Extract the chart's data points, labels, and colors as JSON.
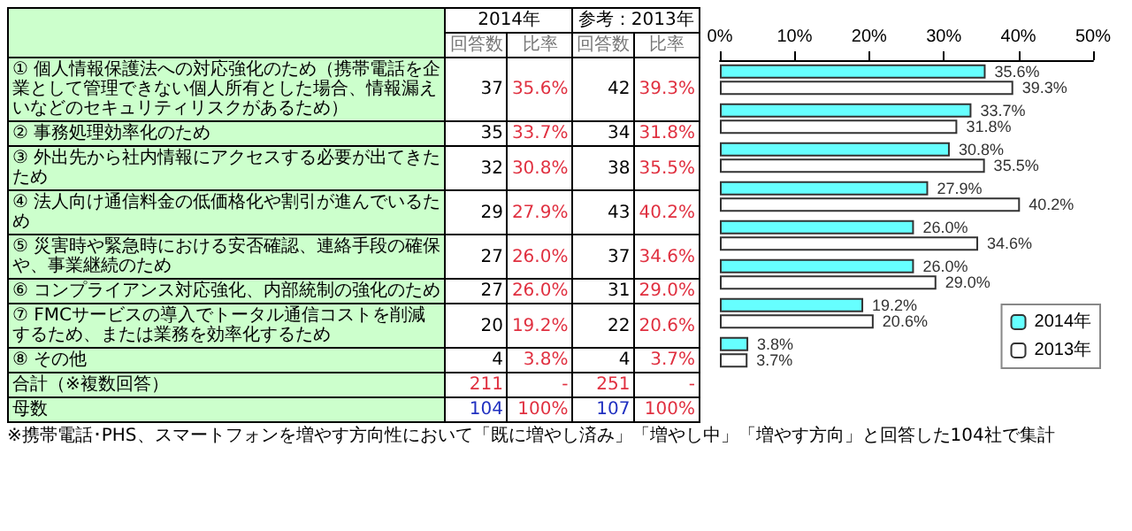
{
  "chart_data": [
    {
      "type": "other",
      "categories": [
        "回答数",
        "比率",
        "回答数",
        "比率"
      ],
      "y_categories": [
        "① 個人情報保護法への対応強化のため（携帯電話を企業として管理できない個人所有とした場合、情報漏えいなどのセキュリティリスクがあるため）",
        "② 事務処理効率化のため",
        "③ 外出先から社内情報にアクセスする必要が出てきたため",
        "④ 法人向け通信料金の低価格化や割引が進んでいるため",
        "⑤ 災害時や緊急時における安否確認、連絡手段の確保や、事業継続のため",
        "⑥ コンプライアンス対応強化、内部統制の強化のため",
        "⑦ FMCサービスの導入でトータル通信コストを削減するため、または業務を効率化するため",
        "⑧ その他",
        "合計（※複数回答）",
        "母数"
      ],
      "cell_labels": [
        [
          "37",
          "35.6%",
          "42",
          "39.3%"
        ],
        [
          "35",
          "33.7%",
          "34",
          "31.8%"
        ],
        [
          "32",
          "30.8%",
          "38",
          "35.5%"
        ],
        [
          "29",
          "27.9%",
          "43",
          "40.2%"
        ],
        [
          "27",
          "26.0%",
          "37",
          "34.6%"
        ],
        [
          "27",
          "26.0%",
          "31",
          "29.0%"
        ],
        [
          "20",
          "19.2%",
          "22",
          "20.6%"
        ],
        [
          "4",
          "3.8%",
          "4",
          "3.7%"
        ],
        [
          "211",
          "-",
          "251",
          "-"
        ],
        [
          "104",
          "100%",
          "107",
          "100%"
        ]
      ],
      "annotations": [
        "2014年",
        "参考：2013年",
        "※携帯電話･PHS、スマートフォンを増やす方向性において「既に増やし済み」「増やし中」「増やす方向」と回答した104社で集計"
      ]
    },
    {
      "type": "bar",
      "orientation": "horizontal",
      "categories": [
        null,
        null,
        null,
        null,
        null,
        null,
        null,
        null
      ],
      "series": [
        {
          "name": "2014年",
          "color": "#66ffff",
          "values": [
            35.6,
            33.7,
            30.8,
            27.9,
            26.0,
            26.0,
            19.2,
            3.8
          ],
          "value_labels": [
            "35.6%",
            "33.7%",
            "30.8%",
            "27.9%",
            "26.0%",
            "26.0%",
            "19.2%",
            "3.8%"
          ]
        },
        {
          "name": "2013年",
          "color": "#ffffff",
          "values": [
            39.3,
            31.8,
            35.5,
            40.2,
            34.6,
            29.0,
            20.6,
            3.7
          ],
          "value_labels": [
            "39.3%",
            "31.8%",
            "35.5%",
            "40.2%",
            "34.6%",
            "29.0%",
            "20.6%",
            "3.7%"
          ]
        }
      ],
      "xlim": [
        0,
        50
      ],
      "xticks": [
        {
          "value": 0,
          "label": "0%"
        },
        {
          "value": 10,
          "label": "10%"
        },
        {
          "value": 20,
          "label": "20%"
        },
        {
          "value": 30,
          "label": "30%"
        },
        {
          "value": 40,
          "label": "40%"
        },
        {
          "value": 50,
          "label": "50%"
        }
      ],
      "legend": "bottom right",
      "grid": false
    }
  ]
}
